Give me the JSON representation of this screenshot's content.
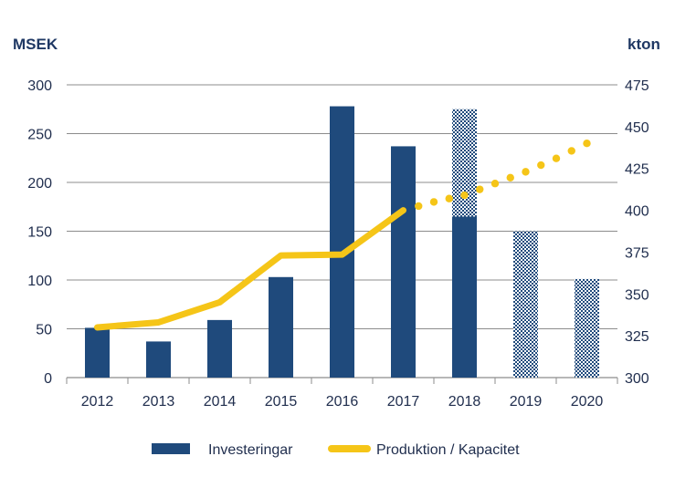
{
  "chart_data": {
    "type": "bar",
    "title": "",
    "categories": [
      "2012",
      "2013",
      "2014",
      "2015",
      "2016",
      "2017",
      "2018",
      "2019",
      "2020"
    ],
    "left_axis": {
      "label": "MSEK",
      "ylim": [
        0,
        300
      ],
      "ticks": [
        "0",
        "50",
        "100",
        "150",
        "200",
        "250",
        "300"
      ]
    },
    "right_axis": {
      "label": "kton",
      "ylim": [
        300,
        475
      ],
      "ticks": [
        "300",
        "325",
        "350",
        "375",
        "400",
        "425",
        "450",
        "475"
      ]
    },
    "grid": true,
    "series": [
      {
        "name": "Investeringar",
        "kind": "bar",
        "axis": "left",
        "color": "#1f4a7c",
        "values": [
          51,
          37,
          59,
          103,
          278,
          237,
          165,
          0,
          0
        ],
        "forecast_values": [
          0,
          0,
          0,
          0,
          0,
          0,
          110,
          150,
          101
        ]
      },
      {
        "name": "Produktion / Kapacitet",
        "kind": "line",
        "axis": "right",
        "color": "#f5c518",
        "actual": [
          330,
          333,
          345,
          373,
          373.5,
          400
        ],
        "forecast_x": [
          "2017",
          "2017.5",
          "2018",
          "2018.5",
          "2019",
          "2019.5",
          "2020"
        ],
        "forecast": [
          400,
          405,
          409,
          416,
          423,
          431,
          440
        ]
      }
    ],
    "legend": {
      "position": "bottom",
      "items": [
        {
          "label": "Investeringar",
          "symbol": "bar"
        },
        {
          "label": "Produktion / Kapacitet",
          "symbol": "line"
        }
      ]
    }
  }
}
